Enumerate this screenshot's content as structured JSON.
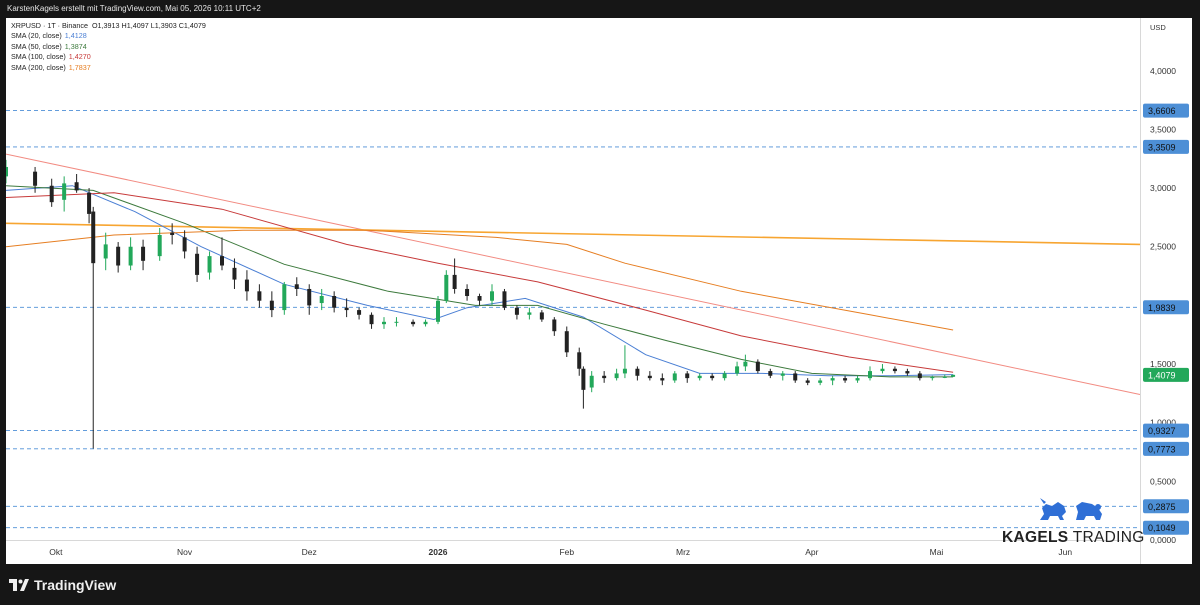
{
  "header": {
    "text": "KarstenKagels erstellt mit TradingView.com, Mai 05, 2026 10:11 UTC+2"
  },
  "legend": {
    "symbol": "XRPUSD · 1T · Binance",
    "ohlc": "O1,3913  H1,4097  L1,3903  C1,4079",
    "sma20": {
      "label": "SMA (20, close)",
      "value": "1,4128",
      "color": "#4a7fd4"
    },
    "sma50": {
      "label": "SMA (50, close)",
      "value": "1,3874",
      "color": "#3d7a3d"
    },
    "sma100": {
      "label": "SMA (100, close)",
      "value": "1,4270",
      "color": "#c73a3a"
    },
    "sma200": {
      "label": "SMA (200, close)",
      "value": "1,7837",
      "color": "#e67e22"
    }
  },
  "price_axis": {
    "currency": "USD",
    "ticks": [
      "4,0000",
      "3,5000",
      "3,0000",
      "2,5000",
      "1,5000",
      "1,0000",
      "0,5000",
      "0,0000"
    ],
    "tick_values": [
      4.0,
      3.5,
      3.0,
      2.5,
      1.5,
      1.0,
      0.5,
      0.0
    ]
  },
  "time_axis": {
    "labels": [
      "Okt",
      "Nov",
      "Dez",
      "2026",
      "Feb",
      "Mrz",
      "Apr",
      "Mai",
      "Jun"
    ],
    "dates": [
      "2025-10-01",
      "2025-11-01",
      "2025-12-01",
      "2026-01-01",
      "2026-02-01",
      "2026-03-01",
      "2026-04-01",
      "2026-05-01",
      "2026-06-01"
    ]
  },
  "levels": [
    {
      "value": 3.6606,
      "label": "3,6606"
    },
    {
      "value": 3.3509,
      "label": "3,3509"
    },
    {
      "value": 1.9839,
      "label": "1,9839"
    },
    {
      "value": 0.9327,
      "label": "0,9327"
    },
    {
      "value": 0.7773,
      "label": "0,7773"
    },
    {
      "value": 0.2875,
      "label": "0,2875"
    },
    {
      "value": 0.1049,
      "label": "0,1049"
    }
  ],
  "current_price": {
    "value": 1.4079,
    "label": "1,4079",
    "color": "#22a85a"
  },
  "colors": {
    "up": "#22a85a",
    "down": "#222222",
    "level": "#4d8fd6",
    "trendline": "#f28b82",
    "horizontal": "#f7a531"
  },
  "watermark": {
    "bold": "KAGELS",
    "light": "TRADING"
  },
  "footer": {
    "brand": "TradingView"
  },
  "chart_data": {
    "type": "candlestick",
    "symbol": "XRPUSD",
    "x_range": [
      "2025-09-19",
      "2026-06-19"
    ],
    "ylim": [
      0,
      4.45
    ],
    "candles": [
      [
        "2025-09-19",
        3.1,
        3.24,
        3.04,
        3.18
      ],
      [
        "2025-09-26",
        3.14,
        3.18,
        2.96,
        3.02
      ],
      [
        "2025-09-30",
        3.02,
        3.08,
        2.84,
        2.88
      ],
      [
        "2025-10-03",
        2.9,
        3.1,
        2.8,
        3.04
      ],
      [
        "2025-10-06",
        3.05,
        3.12,
        2.96,
        2.98
      ],
      [
        "2025-10-09",
        2.96,
        3.0,
        2.7,
        2.78
      ],
      [
        "2025-10-10",
        2.8,
        2.84,
        0.78,
        2.36
      ],
      [
        "2025-10-13",
        2.4,
        2.62,
        2.3,
        2.52
      ],
      [
        "2025-10-16",
        2.5,
        2.54,
        2.28,
        2.34
      ],
      [
        "2025-10-19",
        2.34,
        2.58,
        2.3,
        2.5
      ],
      [
        "2025-10-22",
        2.5,
        2.56,
        2.3,
        2.38
      ],
      [
        "2025-10-26",
        2.42,
        2.66,
        2.38,
        2.6
      ],
      [
        "2025-10-29",
        2.62,
        2.7,
        2.52,
        2.6
      ],
      [
        "2025-11-01",
        2.58,
        2.64,
        2.4,
        2.46
      ],
      [
        "2025-11-04",
        2.44,
        2.5,
        2.2,
        2.26
      ],
      [
        "2025-11-07",
        2.28,
        2.46,
        2.22,
        2.42
      ],
      [
        "2025-11-10",
        2.42,
        2.58,
        2.3,
        2.34
      ],
      [
        "2025-11-13",
        2.32,
        2.4,
        2.14,
        2.22
      ],
      [
        "2025-11-16",
        2.22,
        2.3,
        2.04,
        2.12
      ],
      [
        "2025-11-19",
        2.12,
        2.18,
        1.98,
        2.04
      ],
      [
        "2025-11-22",
        2.04,
        2.12,
        1.9,
        1.96
      ],
      [
        "2025-11-25",
        1.96,
        2.2,
        1.92,
        2.18
      ],
      [
        "2025-11-28",
        2.18,
        2.24,
        2.08,
        2.14
      ],
      [
        "2025-12-01",
        2.14,
        2.18,
        1.92,
        2.0
      ],
      [
        "2025-12-04",
        2.02,
        2.14,
        1.96,
        2.08
      ],
      [
        "2025-12-07",
        2.08,
        2.12,
        1.94,
        1.98
      ],
      [
        "2025-12-10",
        1.98,
        2.06,
        1.9,
        1.96
      ],
      [
        "2025-12-13",
        1.96,
        1.98,
        1.88,
        1.92
      ],
      [
        "2025-12-16",
        1.92,
        1.94,
        1.8,
        1.84
      ],
      [
        "2025-12-19",
        1.84,
        1.9,
        1.8,
        1.86
      ],
      [
        "2025-12-22",
        1.86,
        1.9,
        1.82,
        1.86
      ],
      [
        "2025-12-26",
        1.86,
        1.88,
        1.82,
        1.84
      ],
      [
        "2025-12-29",
        1.84,
        1.88,
        1.82,
        1.86
      ],
      [
        "2026-01-01",
        1.86,
        2.08,
        1.84,
        2.04
      ],
      [
        "2026-01-03",
        2.04,
        2.3,
        2.02,
        2.26
      ],
      [
        "2026-01-05",
        2.26,
        2.4,
        2.1,
        2.14
      ],
      [
        "2026-01-08",
        2.14,
        2.18,
        2.04,
        2.08
      ],
      [
        "2026-01-11",
        2.08,
        2.1,
        2.0,
        2.04
      ],
      [
        "2026-01-14",
        2.04,
        2.18,
        2.0,
        2.12
      ],
      [
        "2026-01-17",
        2.12,
        2.14,
        1.96,
        1.98
      ],
      [
        "2026-01-20",
        1.98,
        2.0,
        1.88,
        1.92
      ],
      [
        "2026-01-23",
        1.92,
        1.98,
        1.88,
        1.94
      ],
      [
        "2026-01-26",
        1.94,
        1.96,
        1.86,
        1.88
      ],
      [
        "2026-01-29",
        1.88,
        1.9,
        1.74,
        1.78
      ],
      [
        "2026-02-01",
        1.78,
        1.82,
        1.56,
        1.6
      ],
      [
        "2026-02-04",
        1.6,
        1.64,
        1.4,
        1.46
      ],
      [
        "2026-02-05",
        1.46,
        1.48,
        1.12,
        1.28
      ],
      [
        "2026-02-07",
        1.3,
        1.44,
        1.26,
        1.4
      ],
      [
        "2026-02-10",
        1.4,
        1.44,
        1.34,
        1.38
      ],
      [
        "2026-02-13",
        1.38,
        1.46,
        1.36,
        1.42
      ],
      [
        "2026-02-15",
        1.42,
        1.66,
        1.38,
        1.46
      ],
      [
        "2026-02-18",
        1.46,
        1.48,
        1.36,
        1.4
      ],
      [
        "2026-02-21",
        1.4,
        1.44,
        1.36,
        1.38
      ],
      [
        "2026-02-24",
        1.38,
        1.42,
        1.32,
        1.36
      ],
      [
        "2026-02-27",
        1.36,
        1.44,
        1.34,
        1.42
      ],
      [
        "2026-03-02",
        1.42,
        1.44,
        1.34,
        1.38
      ],
      [
        "2026-03-05",
        1.38,
        1.42,
        1.36,
        1.4
      ],
      [
        "2026-03-08",
        1.4,
        1.42,
        1.36,
        1.38
      ],
      [
        "2026-03-11",
        1.38,
        1.44,
        1.36,
        1.42
      ],
      [
        "2026-03-14",
        1.42,
        1.52,
        1.4,
        1.48
      ],
      [
        "2026-03-16",
        1.48,
        1.58,
        1.44,
        1.52
      ],
      [
        "2026-03-19",
        1.52,
        1.54,
        1.42,
        1.44
      ],
      [
        "2026-03-22",
        1.44,
        1.46,
        1.38,
        1.4
      ],
      [
        "2026-03-25",
        1.4,
        1.44,
        1.36,
        1.42
      ],
      [
        "2026-03-28",
        1.42,
        1.44,
        1.34,
        1.36
      ],
      [
        "2026-03-31",
        1.36,
        1.38,
        1.32,
        1.34
      ],
      [
        "2026-04-03",
        1.34,
        1.38,
        1.32,
        1.36
      ],
      [
        "2026-04-06",
        1.36,
        1.4,
        1.32,
        1.38
      ],
      [
        "2026-04-09",
        1.38,
        1.4,
        1.34,
        1.36
      ],
      [
        "2026-04-12",
        1.36,
        1.4,
        1.34,
        1.38
      ],
      [
        "2026-04-15",
        1.38,
        1.48,
        1.36,
        1.44
      ],
      [
        "2026-04-18",
        1.44,
        1.5,
        1.42,
        1.46
      ],
      [
        "2026-04-21",
        1.46,
        1.48,
        1.42,
        1.44
      ],
      [
        "2026-04-24",
        1.44,
        1.46,
        1.4,
        1.42
      ],
      [
        "2026-04-27",
        1.42,
        1.44,
        1.36,
        1.38
      ],
      [
        "2026-04-30",
        1.38,
        1.4,
        1.36,
        1.39
      ],
      [
        "2026-05-03",
        1.39,
        1.41,
        1.38,
        1.39
      ],
      [
        "2026-05-05",
        1.3913,
        1.4097,
        1.3903,
        1.4079
      ]
    ],
    "sma": [
      {
        "name": "SMA (20, close)",
        "points": [
          [
            "2025-09-19",
            2.98
          ],
          [
            "2025-10-05",
            3.02
          ],
          [
            "2025-10-20",
            2.8
          ],
          [
            "2025-11-05",
            2.5
          ],
          [
            "2025-11-25",
            2.18
          ],
          [
            "2025-12-15",
            2.0
          ],
          [
            "2025-12-31",
            1.88
          ],
          [
            "2026-01-08",
            1.98
          ],
          [
            "2026-01-22",
            2.06
          ],
          [
            "2026-02-05",
            1.9
          ],
          [
            "2026-02-20",
            1.58
          ],
          [
            "2026-03-05",
            1.42
          ],
          [
            "2026-03-20",
            1.42
          ],
          [
            "2026-04-05",
            1.4
          ],
          [
            "2026-04-20",
            1.4
          ],
          [
            "2026-05-05",
            1.41
          ]
        ]
      },
      {
        "name": "SMA (50, close)",
        "points": [
          [
            "2025-09-19",
            3.02
          ],
          [
            "2025-10-10",
            2.98
          ],
          [
            "2025-11-01",
            2.7
          ],
          [
            "2025-11-25",
            2.35
          ],
          [
            "2025-12-20",
            2.12
          ],
          [
            "2026-01-10",
            2.0
          ],
          [
            "2026-01-25",
            2.0
          ],
          [
            "2026-02-10",
            1.84
          ],
          [
            "2026-02-25",
            1.7
          ],
          [
            "2026-03-15",
            1.54
          ],
          [
            "2026-04-01",
            1.42
          ],
          [
            "2026-04-20",
            1.39
          ],
          [
            "2026-05-05",
            1.39
          ]
        ]
      },
      {
        "name": "SMA (100, close)",
        "points": [
          [
            "2025-09-19",
            2.92
          ],
          [
            "2025-10-15",
            2.96
          ],
          [
            "2025-11-10",
            2.82
          ],
          [
            "2025-12-10",
            2.52
          ],
          [
            "2026-01-01",
            2.36
          ],
          [
            "2026-01-25",
            2.2
          ],
          [
            "2026-02-20",
            1.96
          ],
          [
            "2026-03-15",
            1.74
          ],
          [
            "2026-04-10",
            1.56
          ],
          [
            "2026-05-05",
            1.43
          ]
        ]
      },
      {
        "name": "SMA (200, close)",
        "points": [
          [
            "2025-09-19",
            2.5
          ],
          [
            "2025-10-15",
            2.6
          ],
          [
            "2025-11-15",
            2.64
          ],
          [
            "2025-12-15",
            2.64
          ],
          [
            "2026-01-15",
            2.58
          ],
          [
            "2026-02-01",
            2.52
          ],
          [
            "2026-02-15",
            2.36
          ],
          [
            "2026-03-15",
            2.12
          ],
          [
            "2026-04-15",
            1.92
          ],
          [
            "2026-05-05",
            1.79
          ]
        ]
      }
    ],
    "trendline": [
      [
        "2025-09-19",
        3.29
      ],
      [
        "2026-06-19",
        1.24
      ]
    ],
    "horizontal_line": [
      [
        "2025-09-19",
        2.7
      ],
      [
        "2026-06-19",
        2.52
      ]
    ]
  }
}
